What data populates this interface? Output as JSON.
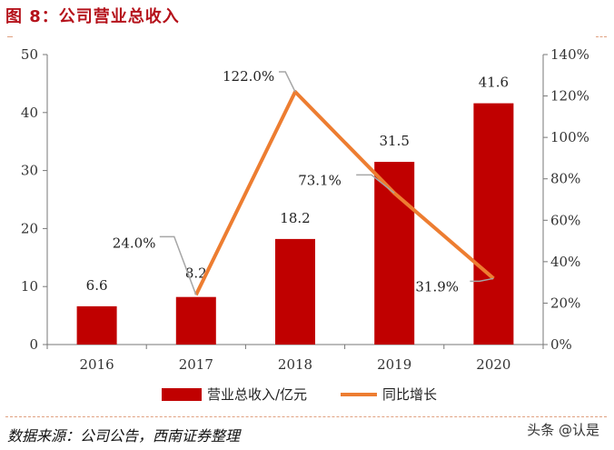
{
  "figure_title": "图 8：公司营业总收入",
  "source_note": "数据来源：公司公告，西南证券整理",
  "watermark": "头条 @认是",
  "chart_data": {
    "type": "bar",
    "categories": [
      "2016",
      "2017",
      "2018",
      "2019",
      "2020"
    ],
    "series": [
      {
        "name": "营业总收入/亿元",
        "type": "bar",
        "axis": "left",
        "color": "#c00000",
        "values": [
          6.6,
          8.2,
          18.2,
          31.5,
          41.6
        ],
        "labels": [
          "6.6",
          "8.2",
          "18.2",
          "31.5",
          "41.6"
        ]
      },
      {
        "name": "同比增长",
        "type": "line",
        "axis": "right",
        "color": "#ed7d31",
        "values": [
          null,
          24.0,
          122.0,
          73.1,
          31.9
        ],
        "labels": [
          "",
          "24.0%",
          "122.0%",
          "73.1%",
          "31.9%"
        ]
      }
    ],
    "ylim_left": [
      0,
      50
    ],
    "yticks_left": [
      "0",
      "10",
      "20",
      "30",
      "40",
      "50"
    ],
    "ylim_right": [
      0,
      140
    ],
    "yticks_right": [
      "0%",
      "20%",
      "40%",
      "60%",
      "80%",
      "100%",
      "120%",
      "140%"
    ],
    "legend_position": "bottom",
    "grid": false
  }
}
